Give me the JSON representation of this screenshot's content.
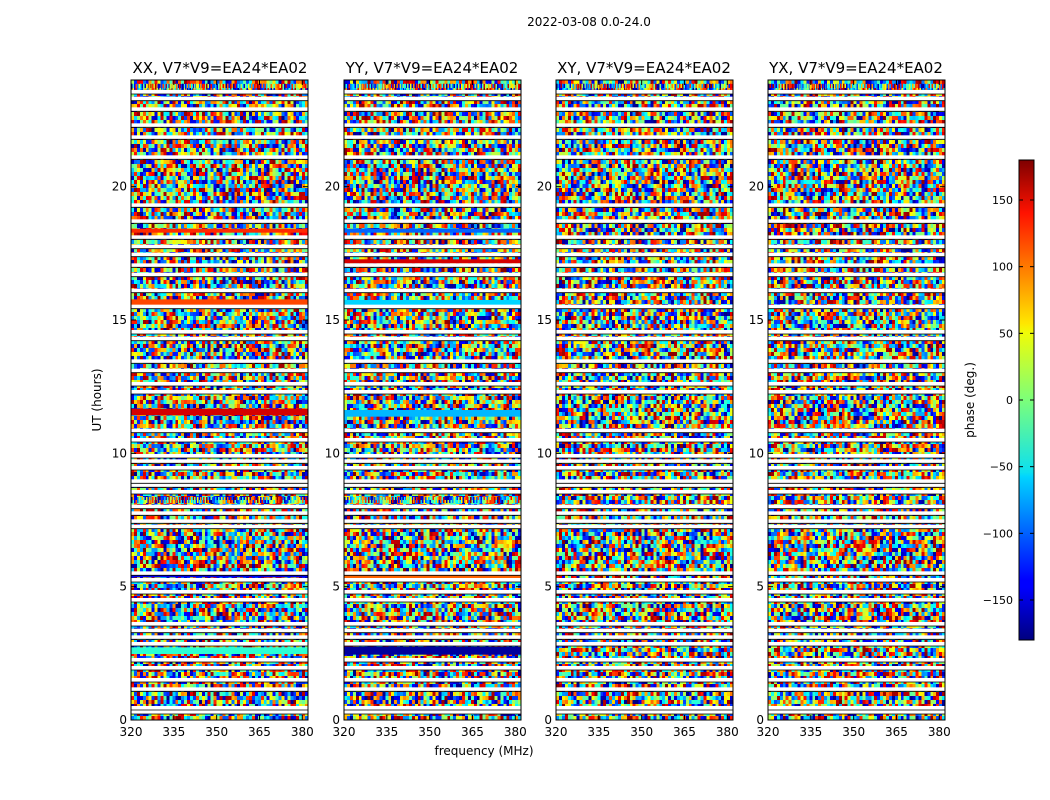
{
  "figure_title": "2022-03-08 0.0-24.0",
  "colors": {
    "background": "#ffffff",
    "axis": "#000000",
    "flag": "#ffffff"
  },
  "chart_data": [
    {
      "type": "heatmap",
      "title": "XX, V7*V9=EA24*EA02",
      "xlabel": "",
      "ylabel": "UT (hours)",
      "xlim": [
        320,
        382
      ],
      "ylim": [
        0,
        24
      ],
      "xticks": [
        320,
        335,
        350,
        365,
        380
      ],
      "yticks": [
        0,
        5,
        10,
        15,
        20
      ],
      "colormap": "jet",
      "value": "phase",
      "flagged_hours": [
        0.3,
        0.45,
        1.15,
        1.5,
        1.95,
        2.25,
        2.85,
        3.1,
        3.35,
        3.6,
        4.5,
        4.8,
        5.25,
        5.5,
        7.25,
        7.45,
        7.75,
        8.0,
        8.55,
        8.8,
        8.95,
        9.45,
        9.7,
        9.9,
        10.5,
        10.85,
        12.3,
        12.6,
        13.1,
        13.45,
        14.3,
        14.55,
        15.5,
        16.1,
        16.7,
        17.05,
        17.45,
        17.75,
        18.1,
        18.7,
        19.3,
        21.1,
        21.85,
        22.3,
        22.9,
        23.3,
        23.55
      ],
      "coherent_bands": [
        {
          "hour": 2.6,
          "width": 0.25,
          "phase": -30
        },
        {
          "hour": 5.45,
          "width": 0.2,
          "phase": -140
        },
        {
          "hour": 11.55,
          "width": 0.25,
          "phase": 150
        },
        {
          "hour": 15.65,
          "width": 0.25,
          "phase": 110
        },
        {
          "hour": 18.35,
          "width": 0.15,
          "phase": 120
        }
      ],
      "striped_hours": [
        8.25,
        23.75
      ]
    },
    {
      "type": "heatmap",
      "title": "YY, V7*V9=EA24*EA02",
      "xlabel": "frequency (MHz)",
      "ylabel": "",
      "xlim": [
        320,
        382
      ],
      "ylim": [
        0,
        24
      ],
      "xticks": [
        320,
        335,
        350,
        365,
        380
      ],
      "yticks": [
        0,
        5,
        10,
        15,
        20
      ],
      "colormap": "jet",
      "value": "phase",
      "flagged_hours": [
        0.3,
        0.45,
        1.15,
        1.5,
        1.95,
        2.25,
        2.85,
        3.1,
        3.35,
        3.6,
        4.5,
        4.8,
        5.25,
        5.5,
        7.25,
        7.45,
        7.75,
        8.0,
        8.55,
        8.8,
        8.95,
        9.45,
        9.7,
        9.9,
        10.5,
        10.85,
        12.3,
        12.6,
        13.1,
        13.45,
        14.3,
        14.55,
        15.5,
        16.1,
        16.7,
        17.05,
        17.45,
        17.75,
        18.1,
        18.7,
        19.3,
        21.1,
        21.85,
        22.3,
        22.9,
        23.3,
        23.55
      ],
      "coherent_bands": [
        {
          "hour": 2.6,
          "width": 0.3,
          "phase": -170
        },
        {
          "hour": 5.4,
          "width": 0.25,
          "phase": 100
        },
        {
          "hour": 11.5,
          "width": 0.25,
          "phase": -70
        },
        {
          "hour": 15.6,
          "width": 0.3,
          "phase": -60
        },
        {
          "hour": 17.2,
          "width": 0.15,
          "phase": 150
        },
        {
          "hour": 18.35,
          "width": 0.15,
          "phase": -100
        }
      ],
      "striped_hours": [
        8.25,
        23.75
      ]
    },
    {
      "type": "heatmap",
      "title": "XY, V7*V9=EA24*EA02",
      "xlabel": "",
      "ylabel": "",
      "xlim": [
        320,
        382
      ],
      "ylim": [
        0,
        24
      ],
      "xticks": [
        320,
        335,
        350,
        365,
        380
      ],
      "yticks": [
        0,
        5,
        10,
        15,
        20
      ],
      "colormap": "jet",
      "value": "phase",
      "flagged_hours": [
        0.3,
        0.45,
        1.15,
        1.5,
        1.95,
        2.25,
        2.85,
        3.1,
        3.35,
        3.6,
        4.5,
        4.8,
        5.25,
        5.5,
        7.25,
        7.45,
        7.75,
        8.0,
        8.55,
        8.8,
        8.95,
        9.45,
        9.7,
        9.9,
        10.5,
        10.85,
        12.3,
        12.6,
        13.1,
        13.45,
        14.3,
        14.55,
        15.5,
        16.1,
        16.7,
        17.05,
        17.45,
        17.75,
        18.1,
        18.7,
        19.3,
        21.1,
        21.85,
        22.3,
        22.9,
        23.3,
        23.55
      ],
      "coherent_bands": [],
      "striped_hours": [
        23.75
      ]
    },
    {
      "type": "heatmap",
      "title": "YX, V7*V9=EA24*EA02",
      "xlabel": "",
      "ylabel": "",
      "xlim": [
        320,
        382
      ],
      "ylim": [
        0,
        24
      ],
      "xticks": [
        320,
        335,
        350,
        365,
        380
      ],
      "yticks": [
        0,
        5,
        10,
        15,
        20
      ],
      "colormap": "jet",
      "value": "phase",
      "flagged_hours": [
        0.3,
        0.45,
        1.15,
        1.5,
        1.95,
        2.25,
        2.85,
        3.1,
        3.35,
        3.6,
        4.5,
        4.8,
        5.25,
        5.5,
        7.25,
        7.45,
        7.75,
        8.0,
        8.55,
        8.8,
        8.95,
        9.45,
        9.7,
        9.9,
        10.5,
        10.85,
        12.3,
        12.6,
        13.1,
        13.45,
        14.3,
        14.55,
        15.5,
        16.1,
        16.7,
        17.05,
        17.45,
        17.75,
        18.1,
        18.7,
        19.3,
        21.1,
        21.85,
        22.3,
        22.9,
        23.3,
        23.55
      ],
      "coherent_bands": [],
      "striped_hours": [
        23.75
      ]
    }
  ],
  "colorbar": {
    "label": "phase (deg.)",
    "range": [
      -180,
      180
    ],
    "ticks": [
      -150,
      -100,
      -50,
      0,
      50,
      100,
      150
    ],
    "tick_labels": [
      "−150",
      "−100",
      "−50",
      "0",
      "50",
      "100",
      "150"
    ],
    "colormap": "jet"
  }
}
